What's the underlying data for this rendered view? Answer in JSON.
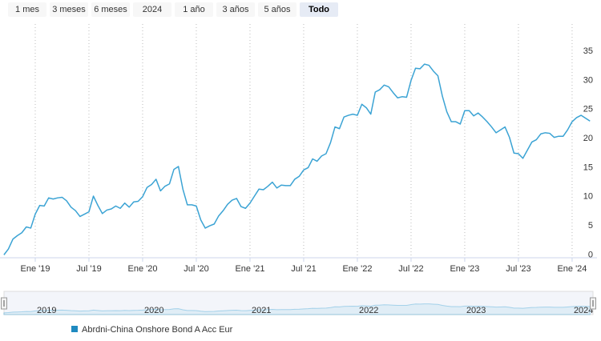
{
  "chart_data": {
    "type": "line",
    "range_buttons": [
      "1 mes",
      "3 meses",
      "6 meses",
      "2024",
      "1 año",
      "3 años",
      "5 años",
      "Todo"
    ],
    "selected_button": 7,
    "categories": [
      null,
      null,
      null,
      null,
      null,
      null,
      null,
      "Ene '19",
      null,
      null,
      null,
      null,
      null,
      null,
      null,
      null,
      null,
      null,
      null,
      "Jul '19",
      null,
      null,
      null,
      null,
      null,
      null,
      null,
      null,
      null,
      null,
      null,
      "Ene '20",
      null,
      null,
      null,
      null,
      null,
      null,
      null,
      null,
      null,
      null,
      null,
      "Jul '20",
      null,
      null,
      null,
      null,
      null,
      null,
      null,
      null,
      null,
      null,
      null,
      "Ene '21",
      null,
      null,
      null,
      null,
      null,
      null,
      null,
      null,
      null,
      null,
      null,
      "Jul '21",
      null,
      null,
      null,
      null,
      null,
      null,
      null,
      null,
      null,
      null,
      null,
      "Ene '22",
      null,
      null,
      null,
      null,
      null,
      null,
      null,
      null,
      null,
      null,
      null,
      "Jul '22",
      null,
      null,
      null,
      null,
      null,
      null,
      null,
      null,
      null,
      null,
      null,
      "Ene '23",
      null,
      null,
      null,
      null,
      null,
      null,
      null,
      null,
      null,
      null,
      null,
      "Jul '23",
      null,
      null,
      null,
      null,
      null,
      null,
      null,
      null,
      null,
      null,
      null,
      "Ene '24",
      null,
      null,
      null,
      null
    ],
    "series": [
      {
        "name": "Abrdni-China Onshore Bond A Acc Eur",
        "color": "#3ba3d4",
        "values": [
          0,
          1,
          2.7,
          3.3,
          3.8,
          4.8,
          4.6,
          7,
          8.5,
          8.4,
          9.8,
          9.6,
          9.8,
          9.9,
          9.3,
          8.2,
          7.6,
          6.6,
          7,
          7.4,
          10.1,
          8.5,
          7.1,
          7.7,
          7.9,
          8.4,
          8,
          8.9,
          8.2,
          9.1,
          9.2,
          10,
          11.6,
          12.1,
          13,
          11,
          11.8,
          12.2,
          14.7,
          15.2,
          11.3,
          8.6,
          8.6,
          8.4,
          6,
          4.6,
          5,
          5.3,
          6.7,
          7.6,
          8.7,
          9.4,
          9.7,
          8.3,
          8,
          8.9,
          10.1,
          11.3,
          11.2,
          11.8,
          12.5,
          11.5,
          12,
          11.9,
          11.9,
          13,
          13.5,
          14.6,
          15,
          16.5,
          16.1,
          17,
          17.4,
          19.3,
          22,
          21.7,
          23.7,
          24,
          24.2,
          24,
          25.9,
          25.3,
          24.2,
          28,
          28.4,
          29.2,
          28.9,
          27.9,
          27,
          27.2,
          27.1,
          30,
          32.1,
          32,
          32.8,
          32.6,
          31.6,
          30.8,
          27.3,
          24.6,
          22.9,
          22.9,
          22.5,
          24.8,
          24.8,
          23.9,
          24.4,
          23.7,
          22.9,
          22,
          21,
          21.5,
          22,
          20.2,
          17.5,
          17.4,
          16.6,
          18,
          19.4,
          19.8,
          20.8,
          21,
          20.9,
          20.2,
          20.4,
          20.4,
          21.5,
          22.9,
          23.6,
          24,
          23.5,
          23
        ]
      }
    ],
    "ylim": [
      -0.5,
      39.7
    ],
    "yticks": [
      0,
      5,
      10,
      15,
      20,
      25,
      30,
      35
    ],
    "grid": true,
    "navigator_labels": [
      "2019",
      "2020",
      "2021",
      "2022",
      "2023",
      "2024"
    ]
  }
}
